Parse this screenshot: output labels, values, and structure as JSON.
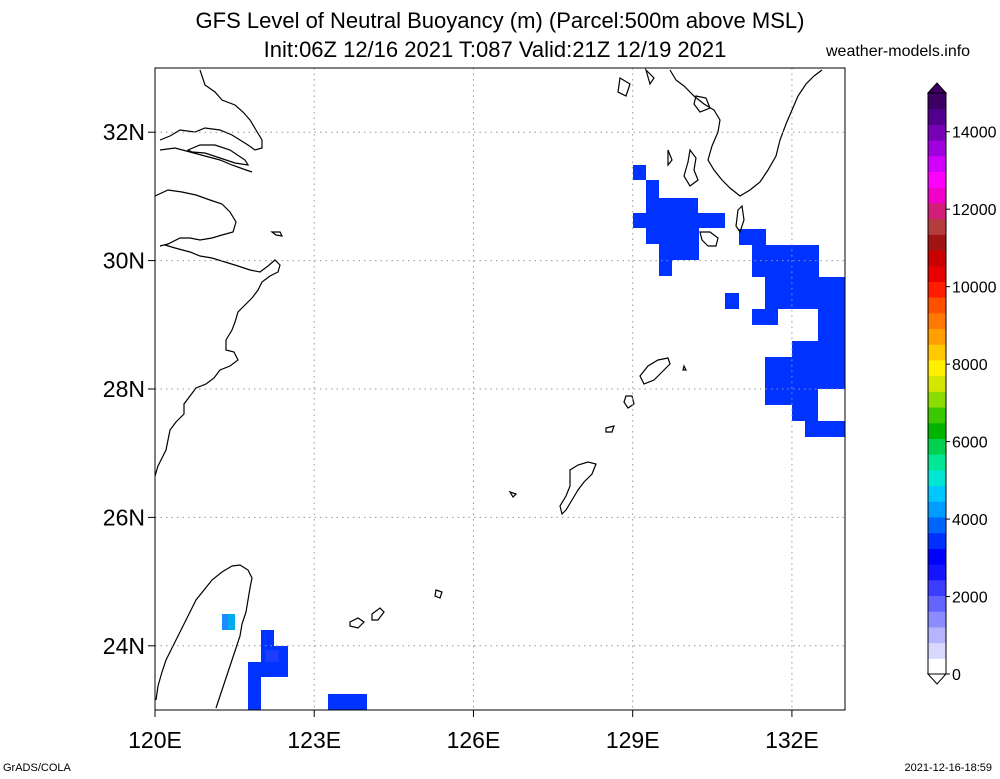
{
  "title": {
    "line1": "GFS Level of Neutral Buoyancy (m) (Parcel:500m above MSL)",
    "line2": "Init:06Z 12/16 2021 T:087 Valid:21Z 12/19 2021"
  },
  "credit": "weather-models.info",
  "footer": {
    "left": "GrADS/COLA",
    "right": "2021-12-16-18:59"
  },
  "map": {
    "lon_range": [
      120,
      133
    ],
    "lat_range": [
      23,
      33
    ],
    "lon_ticks": [
      {
        "value": 120,
        "label": "120E"
      },
      {
        "value": 123,
        "label": "123E"
      },
      {
        "value": 126,
        "label": "126E"
      },
      {
        "value": 129,
        "label": "129E"
      },
      {
        "value": 132,
        "label": "132E"
      }
    ],
    "lat_ticks": [
      {
        "value": 24,
        "label": "24N"
      },
      {
        "value": 26,
        "label": "26N"
      },
      {
        "value": 28,
        "label": "28N"
      },
      {
        "value": 30,
        "label": "30N"
      },
      {
        "value": 32,
        "label": "32N"
      }
    ],
    "grid": "dotted"
  },
  "colorbar": {
    "min": 0,
    "max": 15000,
    "labels": [
      "0",
      "2000",
      "4000",
      "6000",
      "8000",
      "10000",
      "12000",
      "14000"
    ],
    "colors": [
      "#ffffff",
      "#d8d8ff",
      "#b4b4ff",
      "#8c8cff",
      "#6464ff",
      "#3c3cff",
      "#1414ff",
      "#0000ff",
      "#0030ff",
      "#0064ff",
      "#009cff",
      "#00c8ff",
      "#00e6d2",
      "#00e696",
      "#00d250",
      "#00b400",
      "#3cc800",
      "#8cdc00",
      "#d2e600",
      "#fff000",
      "#ffc800",
      "#ffa000",
      "#ff7800",
      "#ff5000",
      "#ff1e00",
      "#e60000",
      "#c80000",
      "#a01414",
      "#b43c3c",
      "#d21e78",
      "#f000c8",
      "#ff00ff",
      "#d200ff",
      "#a000dc",
      "#7800b4",
      "#50008c",
      "#3c0064"
    ]
  },
  "chart_data": {
    "type": "heatmap",
    "variable": "Level of Neutral Buoyancy (m)",
    "approx_value_m": 2000,
    "regions": [
      {
        "name": "north of Amami / Kyushu south",
        "lon": [
          129.0,
          131.0
        ],
        "lat": [
          29.8,
          31.5
        ],
        "value_m": 2000
      },
      {
        "name": "east of Amami",
        "lon": [
          130.9,
          133.0
        ],
        "lat": [
          27.2,
          30.3
        ],
        "value_m": 2000
      },
      {
        "name": "eastern Taiwan",
        "lon": [
          121.8,
          122.5
        ],
        "lat": [
          23.0,
          24.2
        ],
        "value_m": 2000
      },
      {
        "name": "Taiwan interior (higher)",
        "lon": [
          121.25,
          121.5
        ],
        "lat": [
          24.2,
          24.5
        ],
        "value_m": 3000
      },
      {
        "name": "Yaeyama south",
        "lon": [
          123.2,
          124.0
        ],
        "lat": [
          23.0,
          23.25
        ],
        "value_m": 2000
      }
    ]
  }
}
